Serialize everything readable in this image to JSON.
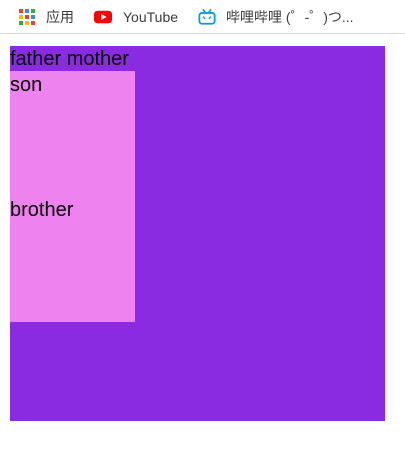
{
  "bookmarks": {
    "items": [
      {
        "label": "应用",
        "icon": "apps-grid-icon"
      },
      {
        "label": "YouTube",
        "icon": "youtube-icon"
      },
      {
        "label": "哔哩哔哩 (゜-゜)つ...",
        "icon": "bilibili-icon"
      }
    ]
  },
  "page": {
    "father_text": "father mother",
    "son_text": "son",
    "brother_text": "brother"
  },
  "colors": {
    "father_bg": "#8a2be2",
    "son_bg": "#ee82ee",
    "youtube_red": "#ff0000",
    "bilibili_blue": "#00a1d6"
  }
}
